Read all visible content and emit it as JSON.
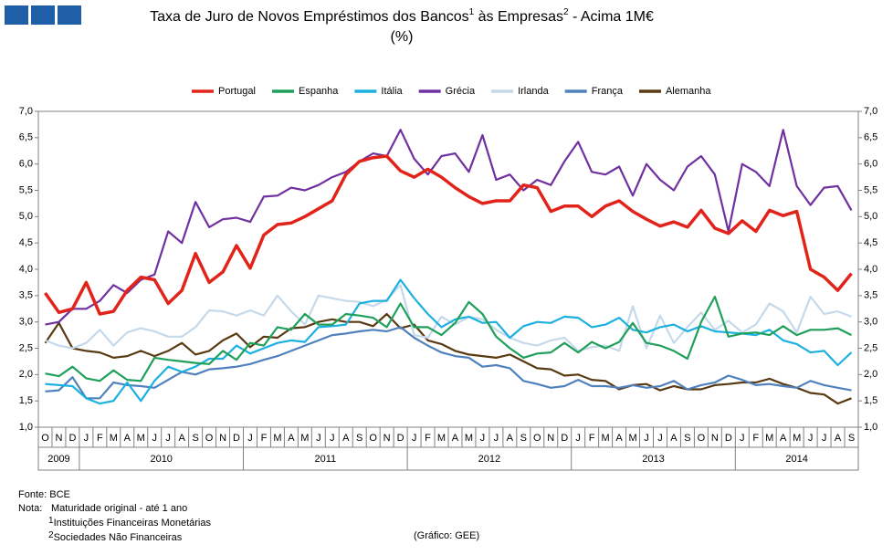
{
  "chart_data": {
    "type": "line",
    "title": "Taxa de Juro de Novos Empréstimos dos Bancos",
    "title_mid": " às Empresas",
    "title_end": " - Acima 1M€",
    "subtitle": "(%)",
    "categories": [
      "O",
      "N",
      "D",
      "J",
      "F",
      "M",
      "A",
      "M",
      "J",
      "J",
      "A",
      "S",
      "O",
      "N",
      "D",
      "J",
      "F",
      "M",
      "A",
      "M",
      "J",
      "J",
      "A",
      "S",
      "O",
      "N",
      "D",
      "J",
      "F",
      "M",
      "A",
      "M",
      "J",
      "J",
      "A",
      "S",
      "O",
      "N",
      "D",
      "J",
      "F",
      "M",
      "A",
      "M",
      "J",
      "J",
      "A",
      "S",
      "O",
      "N",
      "D",
      "J",
      "F",
      "M",
      "A",
      "M",
      "J",
      "J",
      "A",
      "S"
    ],
    "years": [
      {
        "label": "2009",
        "months": 3
      },
      {
        "label": "2010",
        "months": 12
      },
      {
        "label": "2011",
        "months": 12
      },
      {
        "label": "2012",
        "months": 12
      },
      {
        "label": "2013",
        "months": 12
      },
      {
        "label": "2014",
        "months": 9
      }
    ],
    "series": [
      {
        "name": "Portugal",
        "color": "#e2231a",
        "width": 3.5,
        "values": [
          3.55,
          3.18,
          3.25,
          3.75,
          3.15,
          3.2,
          3.6,
          3.85,
          3.8,
          3.35,
          3.6,
          4.3,
          3.75,
          3.95,
          4.45,
          4.02,
          4.65,
          4.85,
          4.88,
          5.0,
          5.15,
          5.3,
          5.8,
          6.05,
          6.12,
          6.15,
          5.87,
          5.75,
          5.9,
          5.75,
          5.55,
          5.38,
          5.25,
          5.3,
          5.3,
          5.6,
          5.55,
          5.1,
          5.2,
          5.2,
          5.0,
          5.2,
          5.3,
          5.1,
          4.95,
          4.82,
          4.9,
          4.8,
          5.12,
          4.78,
          4.68,
          4.92,
          4.72,
          5.12,
          5.02,
          5.1,
          4.0,
          3.85,
          3.6,
          3.92
        ]
      },
      {
        "name": "Espanha",
        "color": "#1fa05a",
        "width": 2.2,
        "values": [
          2.02,
          1.97,
          2.15,
          1.93,
          1.88,
          2.08,
          1.9,
          1.88,
          2.32,
          2.28,
          2.25,
          2.22,
          2.2,
          2.45,
          2.28,
          2.6,
          2.55,
          2.9,
          2.85,
          3.15,
          2.95,
          2.95,
          3.15,
          3.12,
          3.08,
          2.9,
          3.35,
          2.9,
          2.9,
          2.75,
          2.98,
          3.38,
          3.15,
          2.72,
          2.5,
          2.32,
          2.4,
          2.42,
          2.6,
          2.42,
          2.62,
          2.5,
          2.62,
          2.98,
          2.6,
          2.55,
          2.45,
          2.3,
          3.0,
          3.48,
          2.72,
          2.78,
          2.8,
          2.75,
          2.92,
          2.75,
          2.85,
          2.85,
          2.88,
          2.75
        ]
      },
      {
        "name": "Itália",
        "color": "#1cb0e0",
        "width": 2.2,
        "values": [
          1.82,
          1.8,
          1.78,
          1.55,
          1.45,
          1.5,
          1.85,
          1.5,
          1.88,
          2.15,
          2.05,
          2.15,
          2.3,
          2.3,
          2.55,
          2.4,
          2.5,
          2.6,
          2.65,
          2.62,
          2.9,
          2.92,
          2.95,
          3.35,
          3.4,
          3.4,
          3.8,
          3.45,
          3.15,
          2.9,
          3.05,
          3.1,
          2.98,
          3.0,
          2.7,
          2.92,
          3.0,
          2.98,
          3.1,
          3.08,
          2.9,
          2.95,
          3.08,
          2.85,
          2.8,
          2.9,
          2.95,
          2.82,
          2.92,
          2.82,
          2.8,
          2.78,
          2.75,
          2.85,
          2.65,
          2.58,
          2.42,
          2.45,
          2.18,
          2.42
        ]
      },
      {
        "name": "Grécia",
        "color": "#7030a0",
        "width": 2.2,
        "values": [
          2.95,
          3.0,
          3.25,
          3.25,
          3.4,
          3.7,
          3.55,
          3.8,
          3.9,
          4.72,
          4.5,
          5.28,
          4.8,
          4.95,
          4.98,
          4.9,
          5.38,
          5.4,
          5.55,
          5.5,
          5.6,
          5.75,
          5.85,
          6.05,
          6.2,
          6.15,
          6.65,
          6.1,
          5.8,
          6.15,
          6.2,
          5.85,
          6.55,
          5.7,
          5.8,
          5.5,
          5.7,
          5.6,
          6.05,
          6.42,
          5.85,
          5.8,
          5.95,
          5.4,
          6.0,
          5.7,
          5.5,
          5.95,
          6.15,
          5.8,
          4.72,
          6.0,
          5.85,
          5.58,
          6.65,
          5.58,
          5.22,
          5.55,
          5.58,
          5.12
        ]
      },
      {
        "name": "Irlanda",
        "color": "#c5d9ea",
        "width": 2.2,
        "values": [
          2.65,
          2.55,
          2.5,
          2.6,
          2.85,
          2.55,
          2.8,
          2.88,
          2.82,
          2.72,
          2.72,
          2.9,
          3.22,
          3.2,
          3.12,
          3.22,
          3.12,
          3.5,
          3.2,
          2.95,
          3.5,
          3.45,
          3.4,
          3.38,
          3.3,
          3.42,
          3.7,
          2.75,
          2.7,
          3.1,
          2.95,
          3.1,
          3.05,
          2.85,
          2.7,
          2.6,
          2.55,
          2.65,
          2.7,
          2.45,
          2.52,
          2.55,
          2.45,
          3.3,
          2.5,
          3.12,
          2.6,
          2.9,
          3.18,
          2.85,
          3.02,
          2.8,
          2.95,
          3.35,
          3.2,
          2.8,
          3.48,
          3.15,
          3.2,
          3.1
        ]
      },
      {
        "name": "França",
        "color": "#4f81bd",
        "width": 2.2,
        "values": [
          1.68,
          1.7,
          1.95,
          1.55,
          1.55,
          1.85,
          1.8,
          1.78,
          1.75,
          1.9,
          2.05,
          2.0,
          2.1,
          2.12,
          2.15,
          2.2,
          2.28,
          2.35,
          2.45,
          2.55,
          2.65,
          2.75,
          2.78,
          2.82,
          2.85,
          2.82,
          2.9,
          2.7,
          2.55,
          2.42,
          2.35,
          2.32,
          2.15,
          2.18,
          2.12,
          1.88,
          1.82,
          1.75,
          1.78,
          1.9,
          1.78,
          1.78,
          1.75,
          1.8,
          1.75,
          1.78,
          1.88,
          1.72,
          1.8,
          1.85,
          1.98,
          1.9,
          1.8,
          1.82,
          1.78,
          1.75,
          1.88,
          1.8,
          1.75,
          1.7
        ]
      },
      {
        "name": "Alemanha",
        "color": "#5a3a12",
        "width": 2.2,
        "values": [
          2.6,
          2.98,
          2.5,
          2.45,
          2.42,
          2.32,
          2.35,
          2.45,
          2.35,
          2.45,
          2.6,
          2.38,
          2.45,
          2.65,
          2.78,
          2.52,
          2.72,
          2.7,
          2.88,
          2.9,
          3.0,
          3.05,
          3.0,
          3.0,
          2.92,
          3.15,
          2.88,
          2.95,
          2.65,
          2.58,
          2.45,
          2.38,
          2.35,
          2.32,
          2.38,
          2.25,
          2.12,
          2.1,
          1.98,
          2.0,
          1.9,
          1.88,
          1.72,
          1.8,
          1.82,
          1.7,
          1.78,
          1.72,
          1.72,
          1.8,
          1.82,
          1.85,
          1.85,
          1.92,
          1.82,
          1.75,
          1.65,
          1.62,
          1.45,
          1.55
        ]
      }
    ],
    "ylim": [
      1,
      7
    ],
    "yticks": [
      {
        "value": 1,
        "label": "1,0"
      },
      {
        "value": 1.5,
        "label": "1,5"
      },
      {
        "value": 2,
        "label": "2,0"
      },
      {
        "value": 2.5,
        "label": "2,5"
      },
      {
        "value": 3,
        "label": "3,0"
      },
      {
        "value": 3.5,
        "label": "3,5"
      },
      {
        "value": 4,
        "label": "4,0"
      },
      {
        "value": 4.5,
        "label": "4,5"
      },
      {
        "value": 5,
        "label": "5,0"
      },
      {
        "value": 5.5,
        "label": "5,5"
      },
      {
        "value": 6,
        "label": "6,0"
      },
      {
        "value": 6.5,
        "label": "6,5"
      },
      {
        "value": 7,
        "label": "7,0"
      }
    ],
    "y2lim": [
      1,
      7
    ],
    "y2ticks": [
      {
        "value": 1,
        "label": "1,0"
      },
      {
        "value": 1.5,
        "label": "1,5"
      },
      {
        "value": 2,
        "label": "2,0"
      },
      {
        "value": 2.5,
        "label": "2,5"
      },
      {
        "value": 3,
        "label": "3,0"
      },
      {
        "value": 3.5,
        "label": "3,5"
      },
      {
        "value": 4,
        "label": "4,0"
      },
      {
        "value": 4.5,
        "label": "4,5"
      },
      {
        "value": 5,
        "label": "5,0"
      },
      {
        "value": 5.5,
        "label": "5,5"
      },
      {
        "value": 6,
        "label": "6,0"
      },
      {
        "value": 6.5,
        "label": "6,5"
      },
      {
        "value": 7,
        "label": "7,0"
      }
    ],
    "grid": false,
    "legend": "top"
  },
  "notes": {
    "source": "Fonte: BCE",
    "note_label": "Nota:",
    "note": "Maturidade original - até 1 ano",
    "footnotes": [
      {
        "mark": "1",
        "text": "Instituições Financeiras Monetárias"
      },
      {
        "mark": "2",
        "text": "Sociedades Não Financeiras"
      }
    ],
    "credit": "(Gráfico: GEE)"
  }
}
